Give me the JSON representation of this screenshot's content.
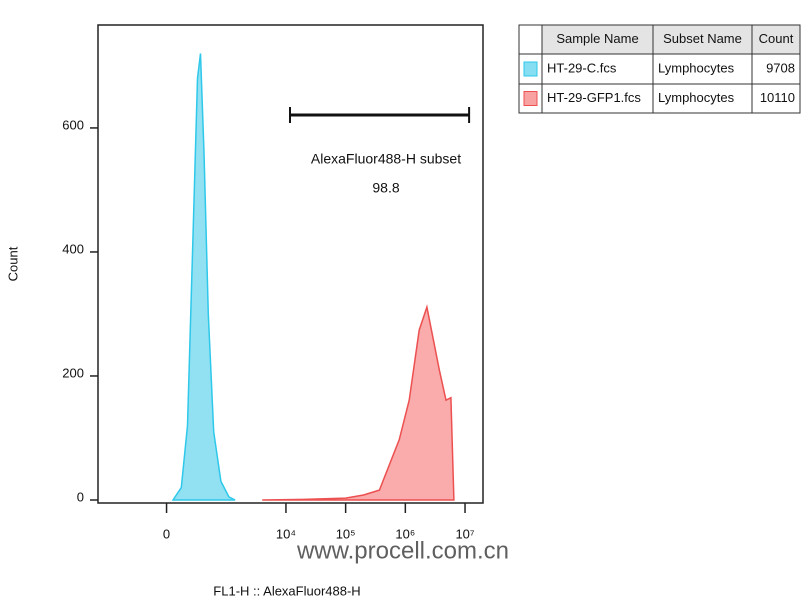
{
  "chart_data": {
    "type": "histogram-overlay",
    "xlabel": "FL1-H :: AlexaFluor488-H",
    "ylabel": "Count",
    "xscale": "biexponential",
    "xlim": [
      -1400,
      20000000
    ],
    "ylim": [
      0,
      766
    ],
    "xticks": [
      0,
      {
        "value": 10000,
        "label": "10⁴"
      },
      {
        "value": 100000,
        "label": "10⁵"
      },
      {
        "value": 1000000,
        "label": "10⁶"
      },
      {
        "value": 10000000,
        "label": "10⁷"
      }
    ],
    "yticks": [
      0,
      200,
      400,
      600
    ],
    "table_headers": [
      "Sample Name",
      "Subset Name",
      "Count"
    ],
    "series": [
      {
        "name": "HT-29-C.fcs",
        "subset": "Lymphocytes",
        "count": 9708,
        "color": "#2ec8ea",
        "fill": "#86def2",
        "x": [
          50,
          120,
          180,
          240,
          300,
          344,
          400,
          480,
          600,
          800,
          1100,
          1400
        ],
        "values": [
          0,
          20,
          120,
          420,
          680,
          720,
          560,
          300,
          110,
          30,
          5,
          0
        ]
      },
      {
        "name": "HT-29-GFP1.fcs",
        "subset": "Lymphocytes",
        "count": 10110,
        "color": "#ec5050",
        "fill": "#f9a2a2",
        "x": [
          4000,
          20000,
          100000,
          200000,
          368000,
          790000,
          1160000,
          1710000,
          2300000,
          3700000,
          4800000,
          5800000,
          6500000
        ],
        "values": [
          0,
          1,
          3,
          8,
          16,
          97,
          161,
          274,
          311,
          210,
          161,
          165,
          0
        ]
      }
    ],
    "gate": {
      "name": "AlexaFluor488-H subset",
      "value": 98.8,
      "range": [
        11700,
        11700000
      ]
    },
    "watermark": "www.procell.com.cn"
  }
}
